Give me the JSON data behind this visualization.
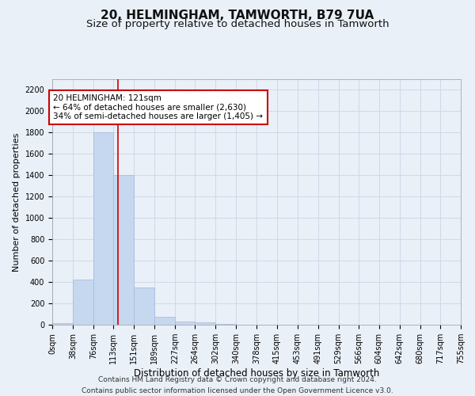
{
  "title": "20, HELMINGHAM, TAMWORTH, B79 7UA",
  "subtitle": "Size of property relative to detached houses in Tamworth",
  "xlabel": "Distribution of detached houses by size in Tamworth",
  "ylabel": "Number of detached properties",
  "footer_line1": "Contains HM Land Registry data © Crown copyright and database right 2024.",
  "footer_line2": "Contains public sector information licensed under the Open Government Licence v3.0.",
  "bar_edges": [
    0,
    38,
    76,
    113,
    151,
    189,
    227,
    264,
    302,
    340,
    378,
    415,
    453,
    491,
    529,
    566,
    604,
    642,
    680,
    717,
    755
  ],
  "bar_heights": [
    15,
    420,
    1800,
    1400,
    350,
    75,
    30,
    20,
    5,
    2,
    1,
    1,
    0,
    0,
    0,
    0,
    0,
    0,
    0,
    0
  ],
  "bar_color": "#c5d8f0",
  "bar_edgecolor": "#a0b8d8",
  "grid_color": "#d0d8e8",
  "vline_x": 121,
  "vline_color": "#cc0000",
  "annotation_text": "20 HELMINGHAM: 121sqm\n← 64% of detached houses are smaller (2,630)\n34% of semi-detached houses are larger (1,405) →",
  "annotation_box_edgecolor": "#cc0000",
  "annotation_box_facecolor": "#ffffff",
  "ylim": [
    0,
    2300
  ],
  "yticks": [
    0,
    200,
    400,
    600,
    800,
    1000,
    1200,
    1400,
    1600,
    1800,
    2000,
    2200
  ],
  "xtick_labels": [
    "0sqm",
    "38sqm",
    "76sqm",
    "113sqm",
    "151sqm",
    "189sqm",
    "227sqm",
    "264sqm",
    "302sqm",
    "340sqm",
    "378sqm",
    "415sqm",
    "453sqm",
    "491sqm",
    "529sqm",
    "566sqm",
    "604sqm",
    "642sqm",
    "680sqm",
    "717sqm",
    "755sqm"
  ],
  "bg_color": "#eaf0f8",
  "title_fontsize": 11,
  "subtitle_fontsize": 9.5,
  "ylabel_fontsize": 8,
  "xlabel_fontsize": 8.5,
  "tick_fontsize": 7,
  "annotation_fontsize": 7.5,
  "footer_fontsize": 6.5
}
